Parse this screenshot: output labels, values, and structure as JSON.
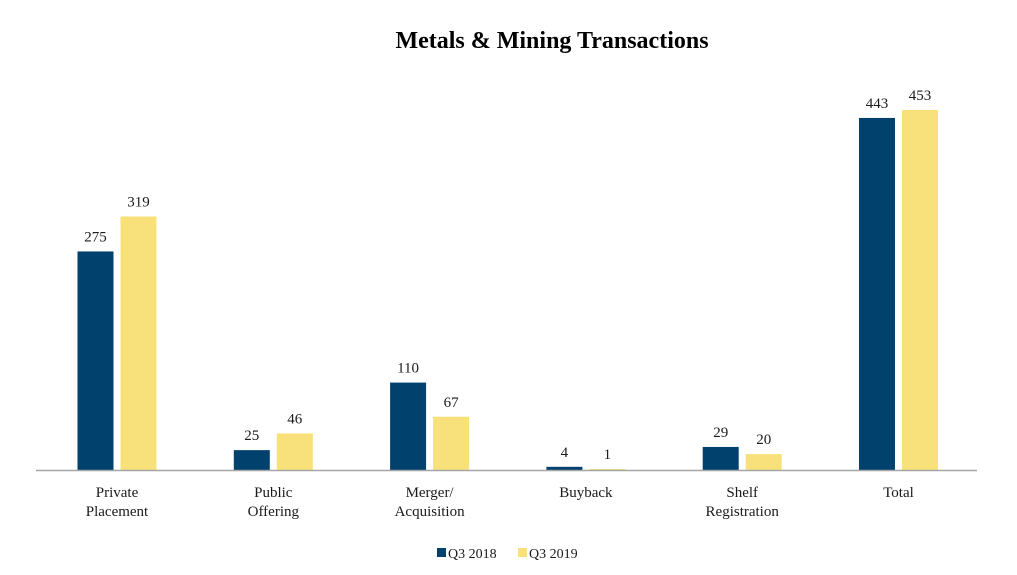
{
  "chart_data": {
    "type": "bar",
    "title": "Metals & Mining Transactions",
    "xlabel": "",
    "ylabel": "",
    "ylim": [
      0,
      460
    ],
    "grid": false,
    "legend_position": "bottom",
    "categories": [
      [
        "Private",
        "Placement"
      ],
      [
        "Public",
        "Offering"
      ],
      [
        "Merger/",
        "Acquisition"
      ],
      [
        "Buyback"
      ],
      [
        "Shelf",
        "Registration"
      ],
      [
        "Total"
      ]
    ],
    "series": [
      {
        "name": "Q3 2018",
        "color": "#00416d",
        "values": [
          275,
          25,
          110,
          4,
          29,
          443
        ]
      },
      {
        "name": "Q3 2019",
        "color": "#f8e07a",
        "values": [
          319,
          46,
          67,
          1,
          20,
          453
        ]
      }
    ]
  }
}
